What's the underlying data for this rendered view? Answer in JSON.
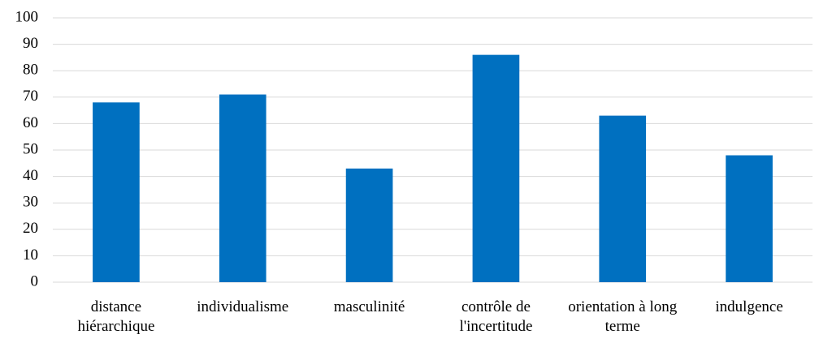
{
  "chart_data": {
    "type": "bar",
    "categories": [
      "distance hiérarchique",
      "individualisme",
      "masculinité",
      "contrôle de l'incertitude",
      "orientation à long terme",
      "indulgence"
    ],
    "values": [
      68,
      71,
      43,
      86,
      63,
      48
    ],
    "color": "#0070c0",
    "ylim": [
      0,
      100
    ],
    "yticks": [
      0,
      10,
      20,
      30,
      40,
      50,
      60,
      70,
      80,
      90,
      100
    ],
    "grid": true
  }
}
